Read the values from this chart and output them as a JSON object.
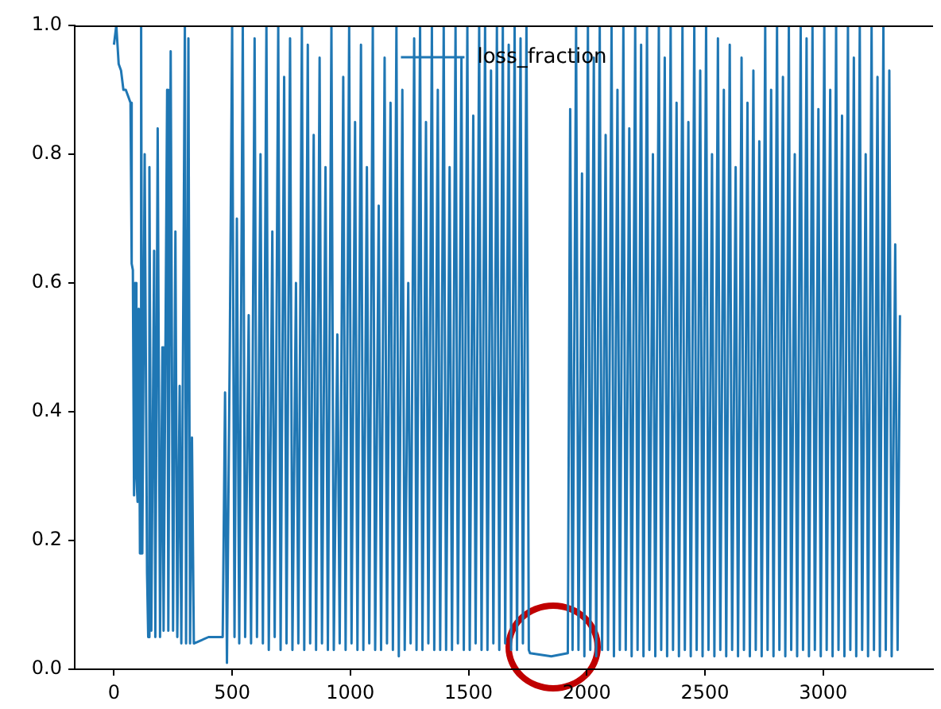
{
  "chart_data": {
    "type": "line",
    "x": [
      0,
      10,
      20,
      30,
      40,
      50,
      60,
      70,
      75,
      80,
      85,
      90,
      95,
      100,
      105,
      110,
      115,
      120,
      130,
      140,
      145,
      150,
      158,
      170,
      175,
      185,
      195,
      205,
      210,
      225,
      230,
      240,
      250,
      260,
      268,
      278,
      285,
      300,
      305,
      315,
      322,
      330,
      338,
      400,
      460,
      470,
      478,
      490,
      500,
      510,
      520,
      530,
      545,
      555,
      570,
      580,
      595,
      605,
      620,
      630,
      645,
      655,
      670,
      680,
      695,
      705,
      720,
      730,
      745,
      755,
      770,
      780,
      795,
      805,
      820,
      830,
      845,
      855,
      870,
      880,
      895,
      905,
      920,
      930,
      945,
      955,
      970,
      980,
      995,
      1005,
      1020,
      1030,
      1045,
      1055,
      1070,
      1080,
      1095,
      1105,
      1120,
      1130,
      1145,
      1155,
      1170,
      1180,
      1195,
      1205,
      1220,
      1230,
      1245,
      1255,
      1270,
      1280,
      1295,
      1305,
      1320,
      1330,
      1345,
      1355,
      1370,
      1380,
      1395,
      1405,
      1420,
      1430,
      1445,
      1455,
      1470,
      1480,
      1495,
      1505,
      1520,
      1530,
      1545,
      1555,
      1570,
      1580,
      1595,
      1605,
      1620,
      1630,
      1645,
      1655,
      1670,
      1680,
      1695,
      1705,
      1720,
      1730,
      1745,
      1755,
      1760,
      1850,
      1920,
      1930,
      1940,
      1955,
      1965,
      1980,
      1990,
      2005,
      2015,
      2030,
      2040,
      2055,
      2065,
      2080,
      2090,
      2105,
      2115,
      2130,
      2140,
      2155,
      2165,
      2180,
      2190,
      2205,
      2215,
      2230,
      2240,
      2255,
      2265,
      2280,
      2290,
      2305,
      2315,
      2330,
      2340,
      2355,
      2365,
      2380,
      2390,
      2405,
      2415,
      2430,
      2440,
      2455,
      2465,
      2480,
      2490,
      2505,
      2515,
      2530,
      2540,
      2555,
      2565,
      2580,
      2590,
      2605,
      2615,
      2630,
      2640,
      2655,
      2665,
      2680,
      2690,
      2705,
      2715,
      2730,
      2740,
      2755,
      2765,
      2780,
      2790,
      2805,
      2815,
      2830,
      2840,
      2855,
      2865,
      2880,
      2890,
      2905,
      2915,
      2930,
      2940,
      2955,
      2965,
      2980,
      2990,
      3005,
      3015,
      3030,
      3040,
      3055,
      3065,
      3080,
      3090,
      3105,
      3115,
      3130,
      3140,
      3155,
      3165,
      3180,
      3190,
      3205,
      3215,
      3230,
      3240,
      3255,
      3265,
      3280,
      3290,
      3305,
      3315,
      3325
    ],
    "series": [
      {
        "name": "loss_fraction",
        "color": "#1f77b4",
        "values": [
          0.97,
          1.0,
          0.94,
          0.93,
          0.9,
          0.9,
          0.89,
          0.88,
          0.63,
          0.62,
          0.27,
          0.6,
          0.3,
          0.26,
          0.56,
          0.18,
          1.0,
          0.18,
          0.8,
          0.15,
          0.05,
          0.78,
          0.06,
          0.65,
          0.05,
          0.84,
          0.05,
          0.5,
          0.06,
          0.9,
          0.06,
          0.96,
          0.06,
          0.68,
          0.05,
          0.44,
          0.04,
          1.0,
          0.04,
          0.98,
          0.04,
          0.36,
          0.04,
          0.05,
          0.05,
          0.43,
          0.01,
          0.5,
          1.0,
          0.05,
          0.7,
          0.04,
          1.0,
          0.05,
          0.55,
          0.04,
          0.98,
          0.05,
          0.8,
          0.04,
          1.0,
          0.03,
          0.68,
          0.05,
          1.0,
          0.03,
          0.92,
          0.04,
          0.98,
          0.03,
          0.6,
          0.04,
          1.0,
          0.03,
          0.97,
          0.04,
          0.83,
          0.03,
          0.95,
          0.04,
          0.78,
          0.03,
          1.0,
          0.03,
          0.52,
          0.04,
          0.92,
          0.03,
          1.0,
          0.04,
          0.85,
          0.03,
          0.97,
          0.03,
          0.78,
          0.04,
          1.0,
          0.03,
          0.72,
          0.03,
          0.95,
          0.04,
          0.88,
          0.03,
          1.0,
          0.02,
          0.9,
          0.03,
          0.6,
          0.04,
          0.98,
          0.03,
          1.0,
          0.03,
          0.85,
          0.04,
          1.0,
          0.03,
          0.9,
          0.03,
          1.0,
          0.03,
          0.78,
          0.03,
          1.0,
          0.04,
          0.95,
          0.03,
          1.0,
          0.03,
          0.86,
          0.04,
          1.0,
          0.03,
          1.0,
          0.03,
          0.93,
          0.04,
          1.0,
          0.03,
          1.0,
          0.04,
          0.97,
          0.03,
          1.0,
          0.03,
          0.98,
          0.04,
          1.0,
          0.03,
          0.025,
          0.02,
          0.025,
          0.87,
          0.03,
          1.0,
          0.03,
          0.77,
          0.02,
          1.0,
          0.03,
          0.95,
          0.02,
          1.0,
          0.03,
          0.83,
          0.03,
          1.0,
          0.02,
          0.9,
          0.03,
          1.0,
          0.03,
          0.84,
          0.02,
          1.0,
          0.03,
          0.97,
          0.02,
          1.0,
          0.03,
          0.8,
          0.02,
          1.0,
          0.03,
          0.95,
          0.02,
          1.0,
          0.03,
          0.88,
          0.02,
          1.0,
          0.03,
          0.85,
          0.02,
          1.0,
          0.03,
          0.93,
          0.02,
          1.0,
          0.03,
          0.8,
          0.02,
          0.98,
          0.03,
          0.9,
          0.02,
          0.97,
          0.03,
          0.78,
          0.02,
          0.95,
          0.03,
          0.88,
          0.02,
          0.93,
          0.03,
          0.82,
          0.02,
          1.0,
          0.03,
          0.9,
          0.02,
          1.0,
          0.03,
          0.92,
          0.02,
          1.0,
          0.03,
          0.8,
          0.02,
          1.0,
          0.03,
          0.98,
          0.02,
          1.0,
          0.03,
          0.87,
          0.02,
          1.0,
          0.03,
          0.9,
          0.02,
          1.0,
          0.03,
          0.86,
          0.02,
          1.0,
          0.03,
          0.95,
          0.02,
          1.0,
          0.03,
          0.8,
          0.02,
          1.0,
          0.03,
          0.92,
          0.02,
          1.0,
          0.03,
          0.93,
          0.02,
          0.66,
          0.03,
          0.55
        ]
      }
    ],
    "xlim": [
      -166,
      3465
    ],
    "xticks": [
      0,
      500,
      1000,
      1500,
      2000,
      2500,
      3000
    ],
    "ylim": [
      0,
      1
    ],
    "yticks": [
      {
        "value": 0,
        "label": "0.0"
      },
      {
        "value": 0.2,
        "label": "0.2"
      },
      {
        "value": 0.4,
        "label": "0.4"
      },
      {
        "value": 0.6,
        "label": "0.6"
      },
      {
        "value": 0.8,
        "label": "0.8"
      },
      {
        "value": 1,
        "label": "1.0"
      }
    ],
    "legend": "top"
  }
}
